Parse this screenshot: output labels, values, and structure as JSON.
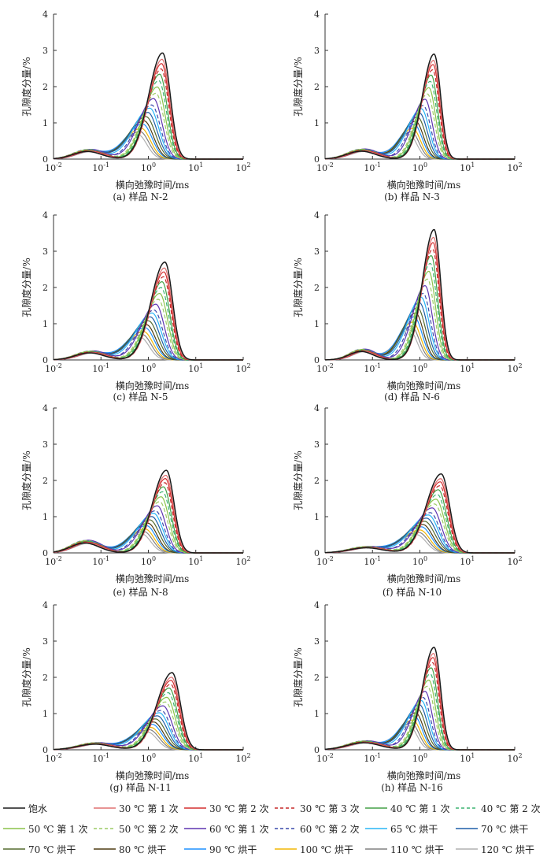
{
  "figure": {
    "ylabel": "孔隙度分量/%",
    "xlabel": "横向弛豫时间/ms",
    "ylim": [
      0,
      4
    ],
    "yticks": [
      "0",
      "1",
      "2",
      "3",
      "4"
    ],
    "xlim_log10": [
      -2,
      2
    ],
    "xticks": [
      {
        "base": "10",
        "exp": "-2"
      },
      {
        "base": "10",
        "exp": "-1"
      },
      {
        "base": "10",
        "exp": "0"
      },
      {
        "base": "10",
        "exp": "1"
      },
      {
        "base": "10",
        "exp": "2"
      }
    ]
  },
  "legend": [
    {
      "label": "饱水",
      "color": "#1a1a1a",
      "dash": false
    },
    {
      "label": "30 ℃ 第 1 次",
      "color": "#e07070",
      "dash": false
    },
    {
      "label": "30 ℃ 第 2 次",
      "color": "#d32f2f",
      "dash": false
    },
    {
      "label": "30 ℃ 第 3 次",
      "color": "#c62828",
      "dash": true
    },
    {
      "label": "40 ℃ 第 1 次",
      "color": "#43a047",
      "dash": false
    },
    {
      "label": "40 ℃ 第 2 次",
      "color": "#3cb371",
      "dash": true
    },
    {
      "label": "50 ℃ 第 1 次",
      "color": "#8bc34a",
      "dash": false
    },
    {
      "label": "50 ℃ 第 2 次",
      "color": "#9ccc65",
      "dash": true
    },
    {
      "label": "60 ℃ 第 1 次",
      "color": "#5e35b1",
      "dash": false
    },
    {
      "label": "60 ℃ 第 2 次",
      "color": "#3949ab",
      "dash": true
    },
    {
      "label": "65 ℃ 烘干",
      "color": "#29b6f6",
      "dash": false
    },
    {
      "label": "70 ℃ 烘干",
      "color": "#1e5fa8",
      "dash": false
    },
    {
      "label": "70 ℃ 烘干",
      "color": "#556b2f",
      "dash": false
    },
    {
      "label": "80 ℃ 烘干",
      "color": "#4e3b12",
      "dash": false
    },
    {
      "label": "90 ℃ 烘干",
      "color": "#1e90ff",
      "dash": false
    },
    {
      "label": "100 ℃ 烘干",
      "color": "#f2b705",
      "dash": false
    },
    {
      "label": "110 ℃ 烘干",
      "color": "#808080",
      "dash": false
    },
    {
      "label": "120 ℃ 烘干",
      "color": "#b0b0b0",
      "dash": false
    }
  ],
  "chart_data": [
    {
      "type": "line",
      "title": "(a) 样品 N-2",
      "sample": "N-2",
      "x_scale": "log",
      "xlim": [
        0.01,
        100
      ],
      "ylim": [
        0,
        4
      ],
      "peak1": {
        "x_log10": -1.25,
        "ymax": 0.27,
        "width": 0.3
      },
      "peak2": {
        "x_log10": 0.3,
        "ymax": 2.93,
        "width": 0.26
      }
    },
    {
      "type": "line",
      "title": "(b) 样品 N-3",
      "sample": "N-3",
      "x_scale": "log",
      "xlim": [
        0.01,
        100
      ],
      "ylim": [
        0,
        4
      ],
      "peak1": {
        "x_log10": -1.2,
        "ymax": 0.28,
        "width": 0.3
      },
      "peak2": {
        "x_log10": 0.3,
        "ymax": 2.9,
        "width": 0.22
      }
    },
    {
      "type": "line",
      "title": "(c) 样品 N-5",
      "sample": "N-5",
      "x_scale": "log",
      "xlim": [
        0.01,
        100
      ],
      "ylim": [
        0,
        4
      ],
      "peak1": {
        "x_log10": -1.2,
        "ymax": 0.25,
        "width": 0.3
      },
      "peak2": {
        "x_log10": 0.35,
        "ymax": 2.7,
        "width": 0.26
      }
    },
    {
      "type": "line",
      "title": "(d) 样品 N-6",
      "sample": "N-6",
      "x_scale": "log",
      "xlim": [
        0.01,
        100
      ],
      "ylim": [
        0,
        4
      ],
      "peak1": {
        "x_log10": -1.2,
        "ymax": 0.3,
        "width": 0.25
      },
      "peak2": {
        "x_log10": 0.3,
        "ymax": 3.6,
        "width": 0.22
      }
    },
    {
      "type": "line",
      "title": "(e) 样品 N-8",
      "sample": "N-8",
      "x_scale": "log",
      "xlim": [
        0.01,
        100
      ],
      "ylim": [
        0,
        4
      ],
      "peak1": {
        "x_log10": -1.3,
        "ymax": 0.35,
        "width": 0.3
      },
      "peak2": {
        "x_log10": 0.38,
        "ymax": 2.28,
        "width": 0.26
      }
    },
    {
      "type": "line",
      "title": "(f) 样品 N-10",
      "sample": "N-10",
      "x_scale": "log",
      "xlim": [
        0.01,
        100
      ],
      "ylim": [
        0,
        4
      ],
      "peak1": {
        "x_log10": -1.1,
        "ymax": 0.18,
        "width": 0.35
      },
      "peak2": {
        "x_log10": 0.45,
        "ymax": 2.18,
        "width": 0.28
      }
    },
    {
      "type": "line",
      "title": "(g) 样品 N-11",
      "sample": "N-11",
      "x_scale": "log",
      "xlim": [
        0.01,
        100
      ],
      "ylim": [
        0,
        4
      ],
      "peak1": {
        "x_log10": -1.1,
        "ymax": 0.2,
        "width": 0.35
      },
      "peak2": {
        "x_log10": 0.5,
        "ymax": 2.13,
        "width": 0.28
      }
    },
    {
      "type": "line",
      "title": "(h) 样品 N-16",
      "sample": "N-16",
      "x_scale": "log",
      "xlim": [
        0.01,
        100
      ],
      "ylim": [
        0,
        4
      ],
      "peak1": {
        "x_log10": -1.15,
        "ymax": 0.25,
        "width": 0.35
      },
      "peak2": {
        "x_log10": 0.3,
        "ymax": 2.83,
        "width": 0.22
      }
    }
  ]
}
